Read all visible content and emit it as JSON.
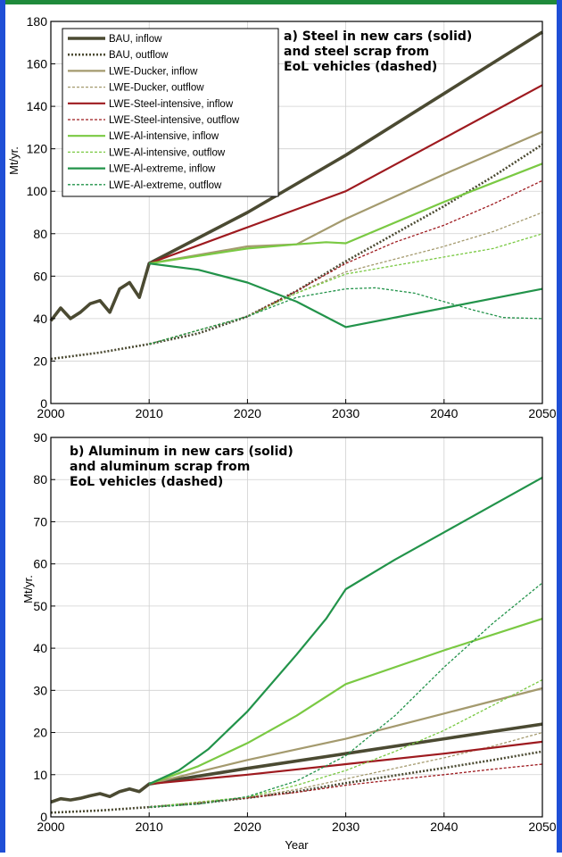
{
  "colors": {
    "frame_top": "#1f8a3b",
    "frame_side": "#1f4fd6",
    "bau": "#4b4a32",
    "ducker": "#a49a6e",
    "steel": "#9e1a1f",
    "al_int": "#7ac943",
    "al_ext": "#22934a"
  },
  "chart_data": [
    {
      "type": "line",
      "title": "a) Steel in new cars (solid)\nand steel scrap from\nEoL vehicles (dashed)",
      "xlabel": "",
      "ylabel": "Mt/yr.",
      "xlim": [
        2000,
        2050
      ],
      "ylim": [
        0,
        180
      ],
      "xticks": [
        "2000",
        "2010",
        "2020",
        "2030",
        "2040",
        "2050"
      ],
      "yticks": [
        "0",
        "20",
        "40",
        "60",
        "80",
        "100",
        "120",
        "140",
        "160",
        "180"
      ],
      "grid": true,
      "legend_position": "top-left",
      "series": [
        {
          "name": "BAU, inflow",
          "color": "bau",
          "style": "solid-thick",
          "points": [
            [
              2000,
              39
            ],
            [
              2001,
              45
            ],
            [
              2002,
              40
            ],
            [
              2003,
              43
            ],
            [
              2004,
              47
            ],
            [
              2005,
              48.5
            ],
            [
              2006,
              43
            ],
            [
              2007,
              54
            ],
            [
              2008,
              57
            ],
            [
              2009,
              50
            ],
            [
              2010,
              66
            ],
            [
              2020,
              90
            ],
            [
              2030,
              117
            ],
            [
              2040,
              146
            ],
            [
              2050,
              175
            ]
          ]
        },
        {
          "name": "BAU, outflow",
          "color": "bau",
          "style": "dotted-thick",
          "points": [
            [
              2000,
              21
            ],
            [
              2005,
              24
            ],
            [
              2010,
              28
            ],
            [
              2015,
              33
            ],
            [
              2020,
              41
            ],
            [
              2025,
              53
            ],
            [
              2030,
              67
            ],
            [
              2035,
              80
            ],
            [
              2040,
              93
            ],
            [
              2045,
              107
            ],
            [
              2050,
              122
            ]
          ]
        },
        {
          "name": "LWE-Ducker, inflow",
          "color": "ducker",
          "style": "solid",
          "points": [
            [
              2010,
              66
            ],
            [
              2020,
              74
            ],
            [
              2025,
              75
            ],
            [
              2030,
              87
            ],
            [
              2040,
              108
            ],
            [
              2050,
              128
            ]
          ]
        },
        {
          "name": "LWE-Ducker, outflow",
          "color": "ducker",
          "style": "dashed",
          "points": [
            [
              2010,
              28
            ],
            [
              2020,
              41
            ],
            [
              2025,
              52
            ],
            [
              2030,
              62
            ],
            [
              2035,
              68
            ],
            [
              2040,
              74
            ],
            [
              2045,
              81
            ],
            [
              2050,
              90
            ]
          ]
        },
        {
          "name": "LWE-Steel-intensive, inflow",
          "color": "steel",
          "style": "solid",
          "points": [
            [
              2010,
              66
            ],
            [
              2020,
              83
            ],
            [
              2030,
              100
            ],
            [
              2040,
              125
            ],
            [
              2050,
              150
            ]
          ]
        },
        {
          "name": "LWE-Steel-intensive, outflow",
          "color": "steel",
          "style": "dashed",
          "points": [
            [
              2010,
              28
            ],
            [
              2020,
              41
            ],
            [
              2025,
              53
            ],
            [
              2030,
              66
            ],
            [
              2035,
              76
            ],
            [
              2040,
              84
            ],
            [
              2045,
              94
            ],
            [
              2050,
              105
            ]
          ]
        },
        {
          "name": "LWE-Al-intensive, inflow",
          "color": "al_int",
          "style": "solid",
          "points": [
            [
              2010,
              66
            ],
            [
              2020,
              73
            ],
            [
              2025,
              75
            ],
            [
              2028,
              76
            ],
            [
              2030,
              75.5
            ],
            [
              2040,
              95
            ],
            [
              2050,
              113
            ]
          ]
        },
        {
          "name": "LWE-Al-intensive, outflow",
          "color": "al_int",
          "style": "dashed",
          "points": [
            [
              2010,
              28
            ],
            [
              2020,
              41
            ],
            [
              2025,
              52
            ],
            [
              2030,
              61
            ],
            [
              2035,
              65
            ],
            [
              2040,
              69
            ],
            [
              2045,
              73
            ],
            [
              2050,
              80
            ]
          ]
        },
        {
          "name": "LWE-Al-extreme, inflow",
          "color": "al_ext",
          "style": "solid",
          "points": [
            [
              2010,
              66
            ],
            [
              2015,
              63
            ],
            [
              2020,
              57
            ],
            [
              2025,
              48
            ],
            [
              2030,
              36
            ],
            [
              2040,
              45
            ],
            [
              2050,
              54
            ]
          ]
        },
        {
          "name": "LWE-Al-extreme, outflow",
          "color": "al_ext",
          "style": "dashed",
          "points": [
            [
              2010,
              28
            ],
            [
              2020,
              41
            ],
            [
              2025,
              50
            ],
            [
              2030,
              54
            ],
            [
              2033,
              54.5
            ],
            [
              2037,
              52
            ],
            [
              2040,
              48
            ],
            [
              2043,
              44
            ],
            [
              2046,
              40.5
            ],
            [
              2050,
              40
            ]
          ]
        }
      ]
    },
    {
      "type": "line",
      "title": "b) Aluminum in new cars (solid)\nand aluminum scrap from\nEoL vehicles (dashed)",
      "xlabel": "Year",
      "ylabel": "Mt/yr.",
      "xlim": [
        2000,
        2050
      ],
      "ylim": [
        0,
        90
      ],
      "xticks": [
        "2000",
        "2010",
        "2020",
        "2030",
        "2040",
        "2050"
      ],
      "yticks": [
        "0",
        "10",
        "20",
        "30",
        "40",
        "50",
        "60",
        "70",
        "80",
        "90"
      ],
      "grid": true,
      "series": [
        {
          "name": "BAU, inflow",
          "color": "bau",
          "style": "solid-thick",
          "points": [
            [
              2000,
              3.5
            ],
            [
              2001,
              4.3
            ],
            [
              2002,
              4
            ],
            [
              2003,
              4.4
            ],
            [
              2004,
              5
            ],
            [
              2005,
              5.5
            ],
            [
              2006,
              4.8
            ],
            [
              2007,
              6
            ],
            [
              2008,
              6.6
            ],
            [
              2009,
              6
            ],
            [
              2010,
              7.8
            ],
            [
              2020,
              11.5
            ],
            [
              2030,
              15
            ],
            [
              2040,
              18.5
            ],
            [
              2050,
              22
            ]
          ]
        },
        {
          "name": "BAU, outflow",
          "color": "bau",
          "style": "dotted-thick",
          "points": [
            [
              2000,
              1
            ],
            [
              2005,
              1.5
            ],
            [
              2010,
              2.3
            ],
            [
              2015,
              3.2
            ],
            [
              2020,
              4.5
            ],
            [
              2025,
              6
            ],
            [
              2030,
              8
            ],
            [
              2035,
              9.8
            ],
            [
              2040,
              11.6
            ],
            [
              2045,
              13.5
            ],
            [
              2050,
              15.5
            ]
          ]
        },
        {
          "name": "LWE-Ducker, inflow",
          "color": "ducker",
          "style": "solid",
          "points": [
            [
              2010,
              7.8
            ],
            [
              2020,
              13.5
            ],
            [
              2030,
              18.5
            ],
            [
              2040,
              24.5
            ],
            [
              2050,
              30.5
            ]
          ]
        },
        {
          "name": "LWE-Ducker, outflow",
          "color": "ducker",
          "style": "dashed",
          "points": [
            [
              2010,
              2.3
            ],
            [
              2020,
              4.6
            ],
            [
              2025,
              6.5
            ],
            [
              2030,
              9
            ],
            [
              2035,
              11.5
            ],
            [
              2040,
              14
            ],
            [
              2045,
              16.8
            ],
            [
              2050,
              20
            ]
          ]
        },
        {
          "name": "LWE-Steel-intensive, inflow",
          "color": "steel",
          "style": "solid",
          "points": [
            [
              2010,
              7.8
            ],
            [
              2020,
              10
            ],
            [
              2030,
              12.5
            ],
            [
              2040,
              15
            ],
            [
              2050,
              17.8
            ]
          ]
        },
        {
          "name": "LWE-Steel-intensive, outflow",
          "color": "steel",
          "style": "dashed",
          "points": [
            [
              2010,
              2.3
            ],
            [
              2020,
              4.5
            ],
            [
              2025,
              5.8
            ],
            [
              2030,
              7.5
            ],
            [
              2035,
              8.8
            ],
            [
              2040,
              10
            ],
            [
              2045,
              11.3
            ],
            [
              2050,
              12.5
            ]
          ]
        },
        {
          "name": "LWE-Al-intensive, inflow",
          "color": "al_int",
          "style": "solid",
          "points": [
            [
              2010,
              7.8
            ],
            [
              2015,
              12
            ],
            [
              2020,
              17.5
            ],
            [
              2025,
              24
            ],
            [
              2030,
              31.5
            ],
            [
              2040,
              39.5
            ],
            [
              2050,
              47
            ]
          ]
        },
        {
          "name": "LWE-Al-intensive, outflow",
          "color": "al_int",
          "style": "dashed",
          "points": [
            [
              2010,
              2.3
            ],
            [
              2020,
              4.7
            ],
            [
              2025,
              7.5
            ],
            [
              2030,
              11
            ],
            [
              2035,
              15.5
            ],
            [
              2040,
              20.5
            ],
            [
              2045,
              26.5
            ],
            [
              2050,
              32.5
            ]
          ]
        },
        {
          "name": "LWE-Al-extreme, inflow",
          "color": "al_ext",
          "style": "solid",
          "points": [
            [
              2010,
              7.8
            ],
            [
              2013,
              11
            ],
            [
              2016,
              16
            ],
            [
              2020,
              25
            ],
            [
              2025,
              38.5
            ],
            [
              2028,
              47
            ],
            [
              2030,
              54
            ],
            [
              2035,
              61
            ],
            [
              2040,
              67.5
            ],
            [
              2045,
              74
            ],
            [
              2050,
              80.5
            ]
          ]
        },
        {
          "name": "LWE-Al-extreme, outflow",
          "color": "al_ext",
          "style": "dashed",
          "points": [
            [
              2010,
              2.3
            ],
            [
              2015,
              3
            ],
            [
              2020,
              4.8
            ],
            [
              2025,
              8.5
            ],
            [
              2030,
              14.5
            ],
            [
              2035,
              24
            ],
            [
              2040,
              35.5
            ],
            [
              2045,
              46
            ],
            [
              2050,
              55.5
            ]
          ]
        }
      ]
    }
  ]
}
